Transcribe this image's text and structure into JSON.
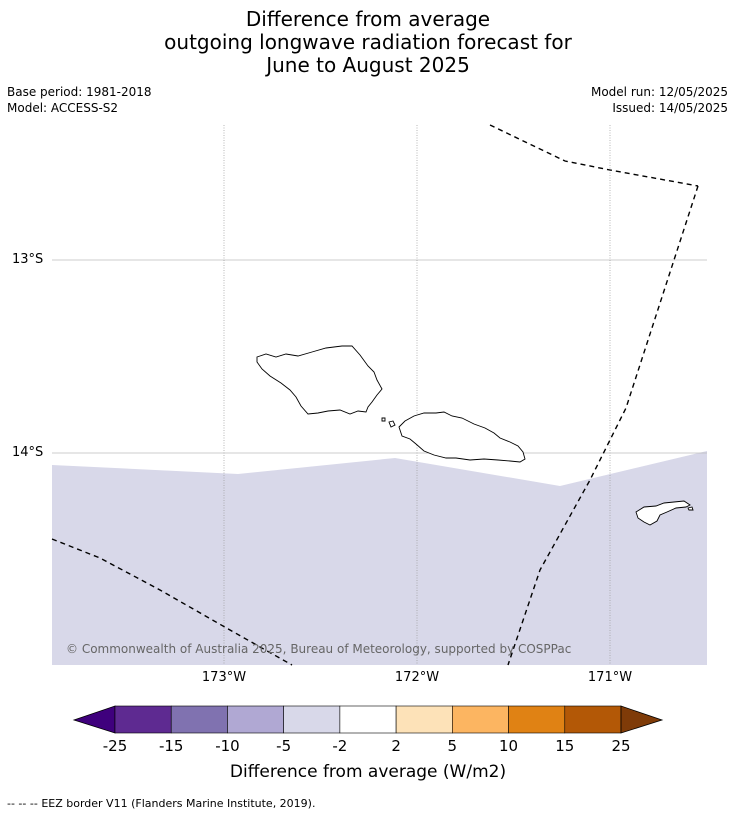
{
  "title": {
    "line1": "Difference from average",
    "line2": "outgoing longwave radiation forecast for",
    "line3": "June to August 2025"
  },
  "meta": {
    "base_period": "Base period: 1981-2018",
    "model": "Model: ACCESS-S2",
    "model_run": "Model run: 12/05/2025",
    "issued": "Issued: 14/05/2025"
  },
  "map": {
    "lat_labels": [
      "13°S",
      "14°S"
    ],
    "lon_labels": [
      "173°W",
      "172°W",
      "171°W"
    ],
    "copyright": "© Commonwealth of Australia 2025, Bureau of Meteorology, supported by COSPPac",
    "shaded_category": "-5 to -2",
    "shaded_color": "#d8d8e9"
  },
  "colorbar": {
    "title": "Difference from average (W/m2)",
    "ticks": [
      "-25",
      "-15",
      "-10",
      "-5",
      "-2",
      "2",
      "5",
      "10",
      "15",
      "25"
    ],
    "colors": [
      "#3f007d",
      "#5e2a91",
      "#8072b0",
      "#b0a8d3",
      "#d8d8e9",
      "#ffffff",
      "#fde2b8",
      "#fcb561",
      "#e08214",
      "#b35806",
      "#7f3b08"
    ]
  },
  "footer": {
    "legend_marker": "--  --  --",
    "legend_text": "EEZ border V11 (Flanders Marine Institute, 2019)."
  }
}
